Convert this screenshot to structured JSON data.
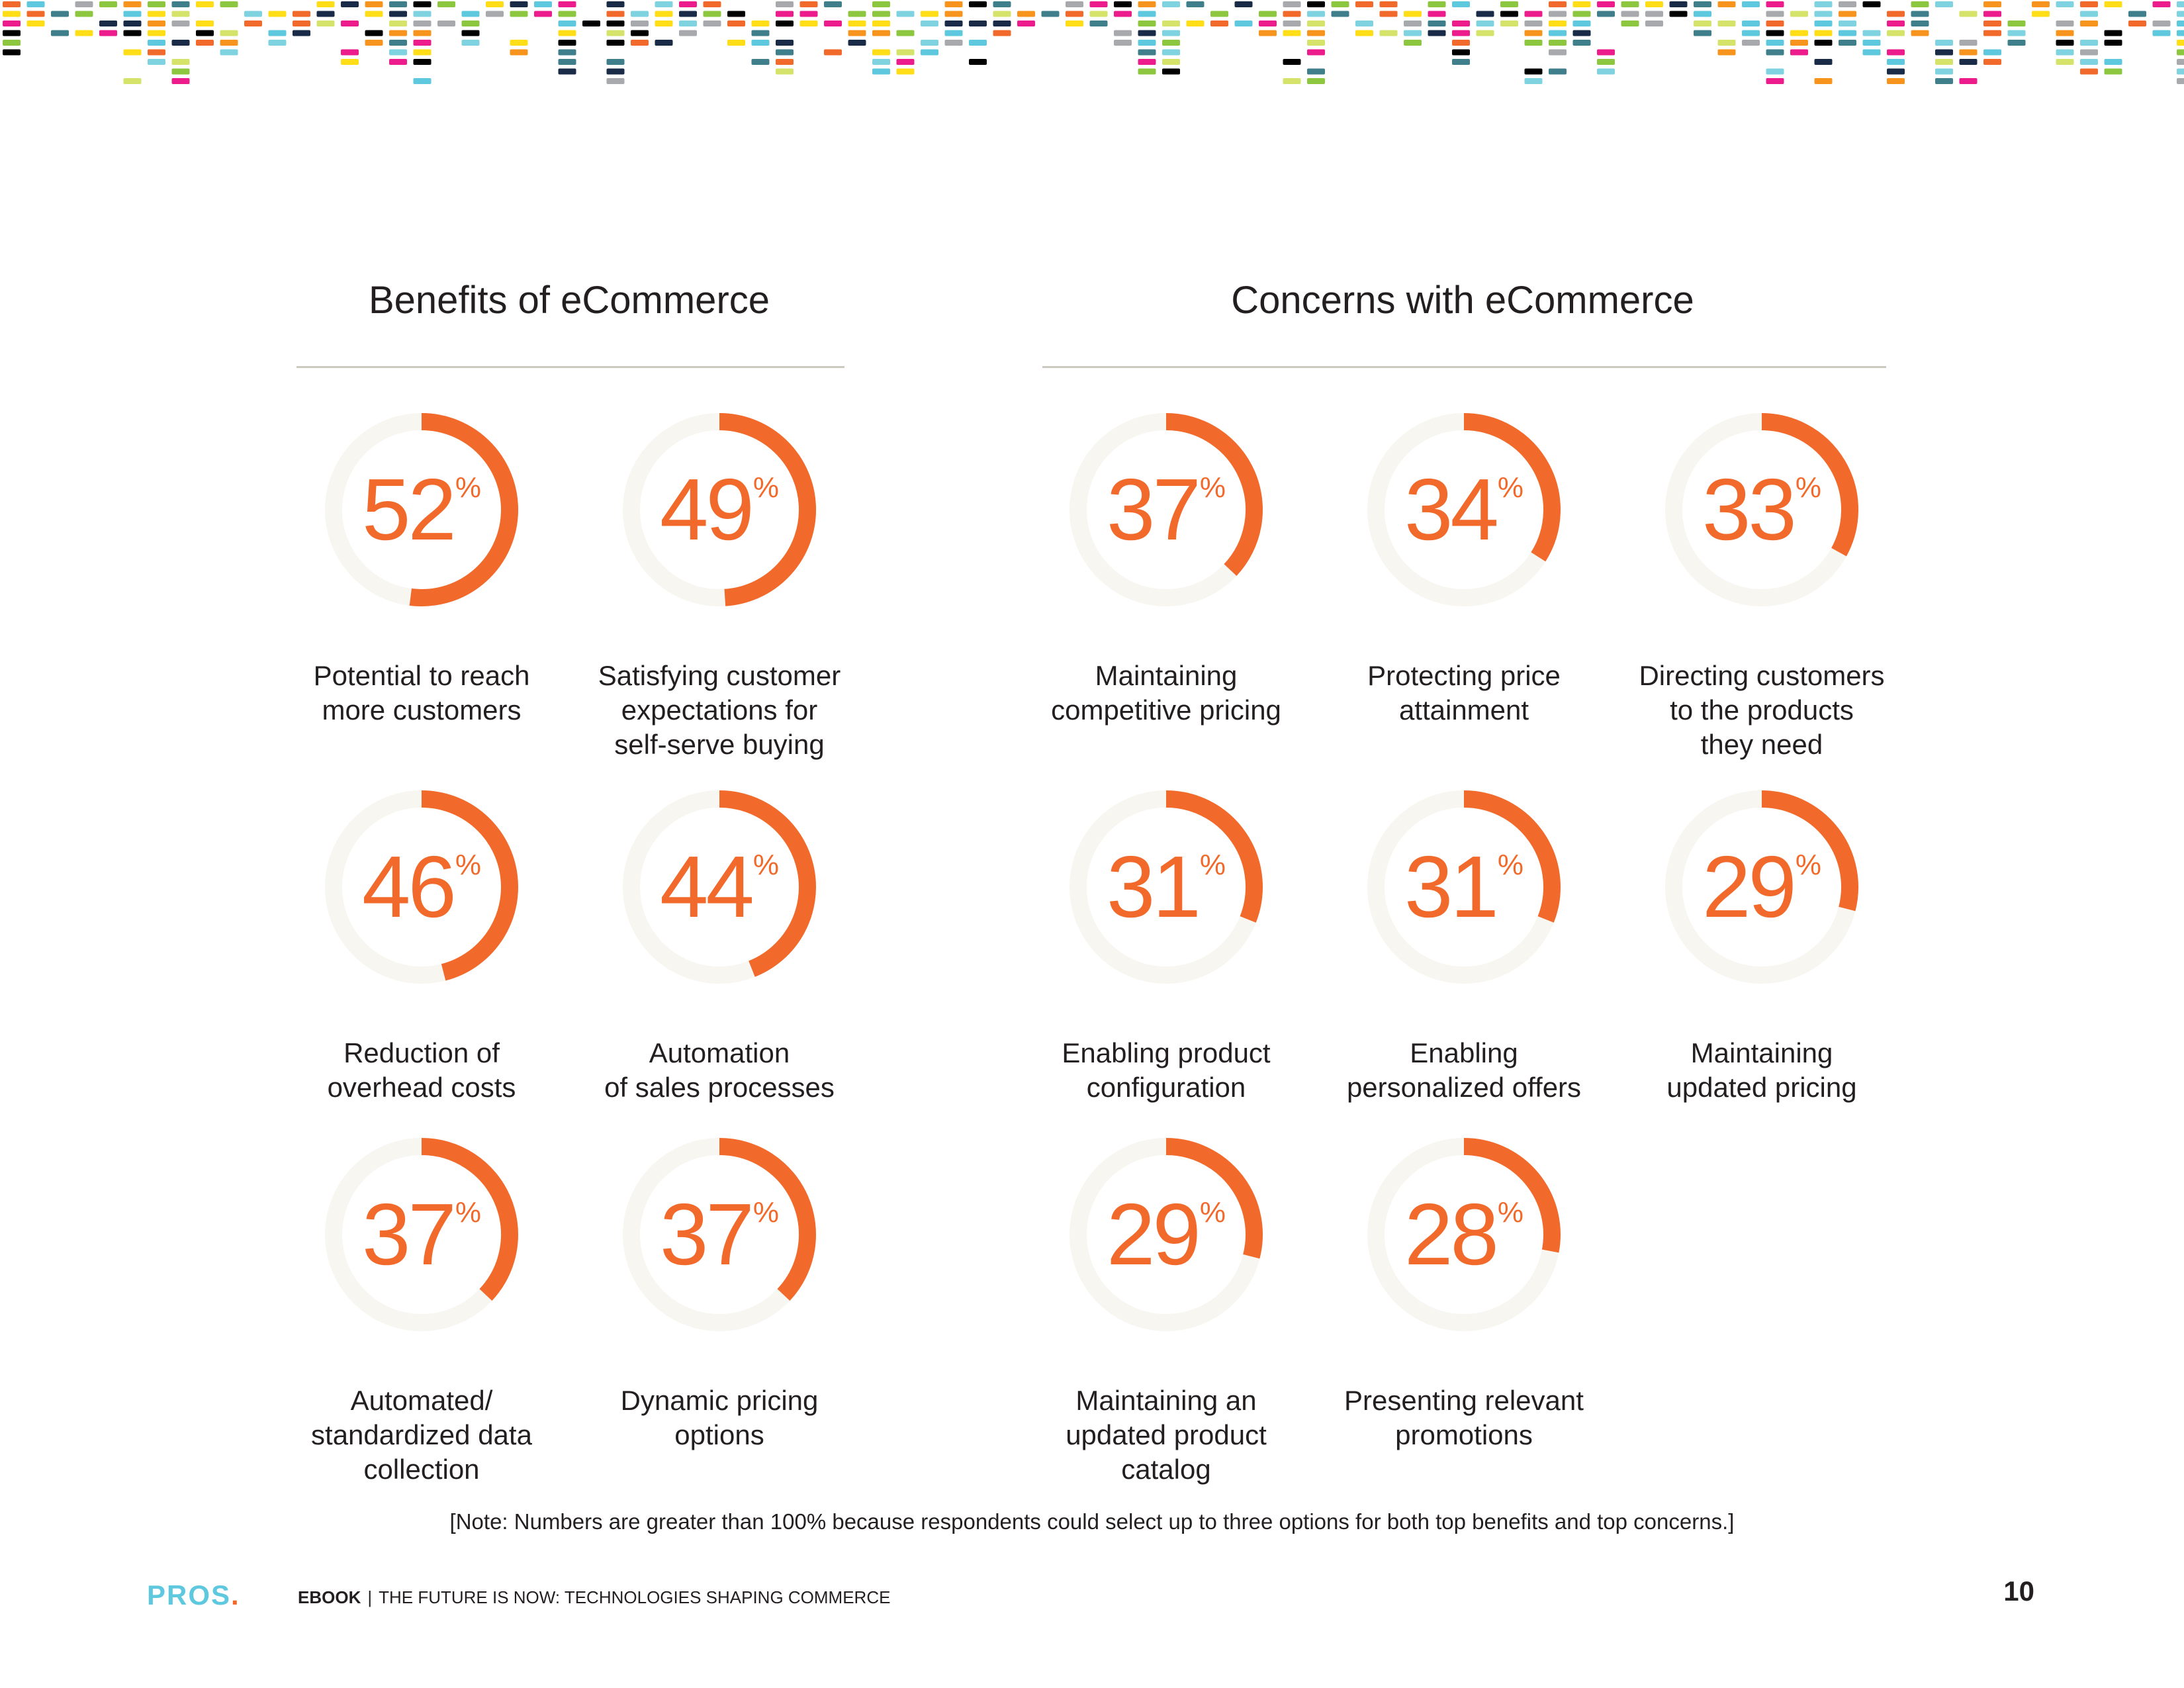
{
  "colors": {
    "accent": "#f26a2b",
    "ring_track": "#f7f6f1",
    "rule": "#cbc9c0",
    "text": "#231f20",
    "logo": "#5ec8de",
    "confetti": [
      "#ec1c8c",
      "#f26a2b",
      "#5ec8de",
      "#8dc63f",
      "#1a2b48",
      "#ffde17",
      "#a7a9ac",
      "#000000",
      "#d6e36a",
      "#7fd3e0",
      "#f7941d",
      "#3f7f8c"
    ]
  },
  "benefits": {
    "title": "Benefits of eCommerce",
    "items": [
      {
        "value": 52,
        "value_text": "52",
        "unit": "%",
        "label": "Potential to reach\nmore customers"
      },
      {
        "value": 49,
        "value_text": "49",
        "unit": "%",
        "label": "Satisfying customer\nexpectations for\nself-serve buying"
      },
      {
        "value": 46,
        "value_text": "46",
        "unit": "%",
        "label": "Reduction of\noverhead costs"
      },
      {
        "value": 44,
        "value_text": "44",
        "unit": "%",
        "label": "Automation\nof sales processes"
      },
      {
        "value": 37,
        "value_text": "37",
        "unit": "%",
        "label": "Automated/\nstandardized data\ncollection"
      },
      {
        "value": 37,
        "value_text": "37",
        "unit": "%",
        "label": "Dynamic pricing\noptions"
      }
    ]
  },
  "concerns": {
    "title": "Concerns with eCommerce",
    "items": [
      {
        "value": 37,
        "value_text": "37",
        "unit": "%",
        "label": "Maintaining\ncompetitive pricing"
      },
      {
        "value": 34,
        "value_text": "34",
        "unit": "%",
        "label": "Protecting price\nattainment"
      },
      {
        "value": 33,
        "value_text": "33",
        "unit": "%",
        "label": "Directing customers\nto the products\nthey need"
      },
      {
        "value": 31,
        "value_text": "31",
        "unit": "%",
        "label": "Enabling product\nconfiguration"
      },
      {
        "value": 31,
        "value_text": "31",
        "unit": "%",
        "label": "Enabling\npersonalized offers"
      },
      {
        "value": 29,
        "value_text": "29",
        "unit": "%",
        "label": "Maintaining\nupdated pricing"
      },
      {
        "value": 29,
        "value_text": "29",
        "unit": "%",
        "label": "Maintaining an\nupdated product\ncatalog"
      },
      {
        "value": 28,
        "value_text": "28",
        "unit": "%",
        "label": "Presenting relevant\npromotions"
      }
    ]
  },
  "note": "[Note: Numbers are greater than 100% because respondents could select up to three options for both top benefits and top concerns.]",
  "footer": {
    "logo_text": "PROS",
    "logo_dot": ".",
    "ebook_label": "EBOOK",
    "separator": "|",
    "doc_title": "THE FUTURE IS NOW: TECHNOLOGIES SHAPING COMMERCE",
    "page_number": "10"
  }
}
